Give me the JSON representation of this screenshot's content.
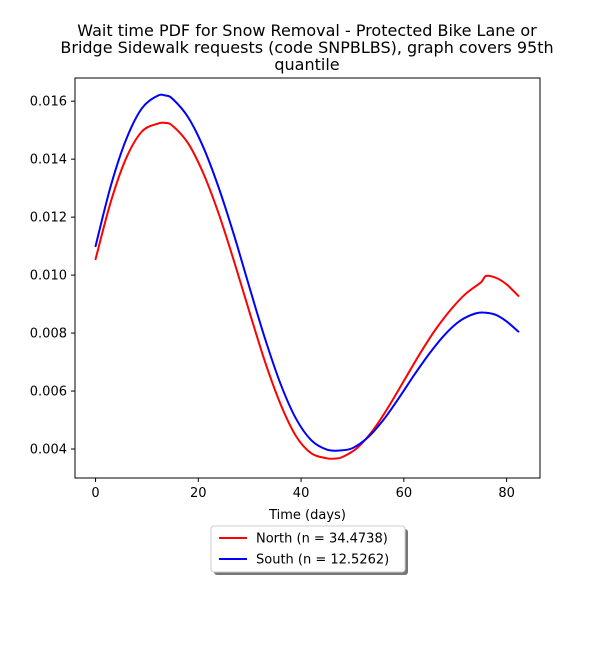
{
  "chart_data": {
    "type": "line",
    "title_lines": [
      "Wait time PDF for Snow Removal - Protected Bike Lane or",
      "Bridge Sidewalk  requests (code SNPBLBS), graph covers 95th",
      "quantile"
    ],
    "xlabel": "Time (days)",
    "ylabel": "",
    "xlim": [
      -4,
      86.5
    ],
    "ylim": [
      0.003,
      0.0168
    ],
    "x_ticks": [
      0,
      20,
      40,
      60,
      80
    ],
    "y_ticks": [
      0.004,
      0.006,
      0.008,
      0.01,
      0.012,
      0.014,
      0.016
    ],
    "y_tick_labels": [
      "0.004",
      "0.006",
      "0.008",
      "0.010",
      "0.012",
      "0.014",
      "0.016"
    ],
    "grid": false,
    "legend_position": "below",
    "series": [
      {
        "name": "North (n = 34.4738)",
        "color": "#ff0000",
        "x": [
          0,
          3,
          6,
          9,
          12,
          13.5,
          15,
          18,
          21,
          24,
          27,
          30,
          33,
          36,
          39,
          42,
          45,
          46.5,
          48,
          51,
          54,
          57,
          60,
          63,
          66,
          69,
          72,
          75,
          76,
          78,
          80,
          82.3
        ],
        "y": [
          0.01055,
          0.01255,
          0.01405,
          0.01495,
          0.01522,
          0.01525,
          0.01515,
          0.01455,
          0.0135,
          0.0121,
          0.01045,
          0.0087,
          0.007,
          0.00555,
          0.00445,
          0.00385,
          0.00368,
          0.00367,
          0.00372,
          0.00405,
          0.00465,
          0.00545,
          0.00635,
          0.00725,
          0.00808,
          0.00878,
          0.00935,
          0.00975,
          0.00997,
          0.0099,
          0.00968,
          0.00928
        ]
      },
      {
        "name": "South (n = 12.5262)",
        "color": "#0000ff",
        "x": [
          0,
          3,
          6,
          9,
          12,
          13.5,
          15,
          18,
          21,
          24,
          27,
          30,
          33,
          36,
          39,
          42,
          45,
          47.5,
          50,
          53,
          56,
          59,
          62,
          65,
          68,
          71,
          74,
          76,
          78,
          80,
          82.3
        ],
        "y": [
          0.011,
          0.0131,
          0.0147,
          0.01575,
          0.01618,
          0.0162,
          0.01608,
          0.01545,
          0.0144,
          0.013,
          0.01135,
          0.00955,
          0.0078,
          0.00625,
          0.00505,
          0.0043,
          0.00398,
          0.00395,
          0.00403,
          0.0044,
          0.005,
          0.00575,
          0.00655,
          0.0073,
          0.00795,
          0.00843,
          0.00868,
          0.0087,
          0.00862,
          0.0084,
          0.00805
        ]
      }
    ]
  }
}
